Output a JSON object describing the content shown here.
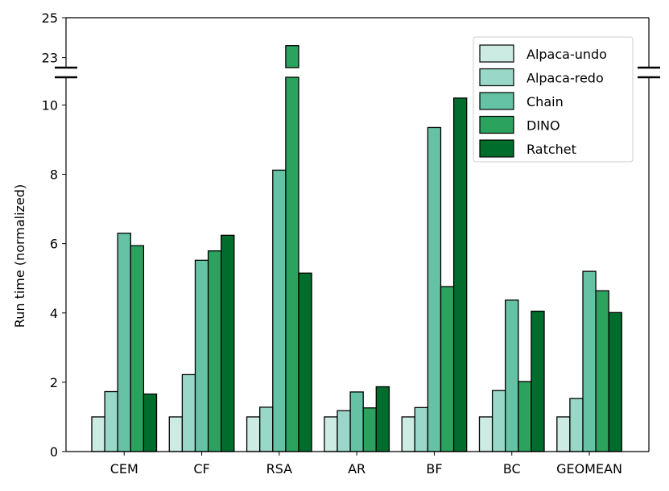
{
  "chart_data": {
    "type": "bar",
    "title": "",
    "xlabel": "",
    "ylabel": "Run time (normalized)",
    "categories": [
      "CEM",
      "CF",
      "RSA",
      "AR",
      "BF",
      "BC",
      "GEOMEAN"
    ],
    "ylim_lower": [
      0,
      10.8
    ],
    "ylim_upper": [
      22.5,
      25
    ],
    "axis_break": true,
    "yticks_lower": [
      "0",
      "2",
      "4",
      "6",
      "8",
      "10"
    ],
    "yticks_upper": [
      "23",
      "25"
    ],
    "legend_position": "top-right",
    "grid": false,
    "series": [
      {
        "name": "Alpaca-undo",
        "color": "#ccebe3",
        "values": [
          1.0,
          1.0,
          1.0,
          1.0,
          1.0,
          1.0,
          1.0
        ]
      },
      {
        "name": "Alpaca-redo",
        "color": "#99d8c9",
        "values": [
          1.73,
          2.22,
          1.28,
          1.18,
          1.27,
          1.76,
          1.53
        ]
      },
      {
        "name": "Chain",
        "color": "#66c2a4",
        "values": [
          6.3,
          5.52,
          8.12,
          1.72,
          9.35,
          4.37,
          5.2
        ]
      },
      {
        "name": "DINO",
        "color": "#2ca25f",
        "values": [
          5.94,
          5.79,
          23.6,
          1.26,
          4.76,
          2.02,
          4.64
        ]
      },
      {
        "name": "Ratchet",
        "color": "#006d2c",
        "values": [
          1.66,
          6.24,
          5.15,
          1.87,
          10.2,
          4.05,
          4.01
        ]
      }
    ]
  }
}
